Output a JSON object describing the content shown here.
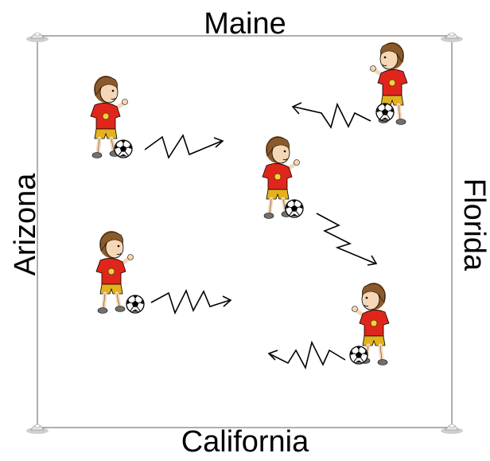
{
  "labels": {
    "top": "Maine",
    "bottom": "California",
    "left": "Arizona",
    "right": "Florida"
  },
  "icons": {
    "corner": "cone-icon",
    "player": "soccer-player-icon",
    "ball": "soccer-ball-icon",
    "arrow": "zigzag-arrow-icon"
  },
  "colors": {
    "jersey": "#e0261b",
    "shorts": "#e3b21c",
    "hair": "#8b5a2b",
    "skin": "#f6d7b5",
    "line": "#000000"
  }
}
